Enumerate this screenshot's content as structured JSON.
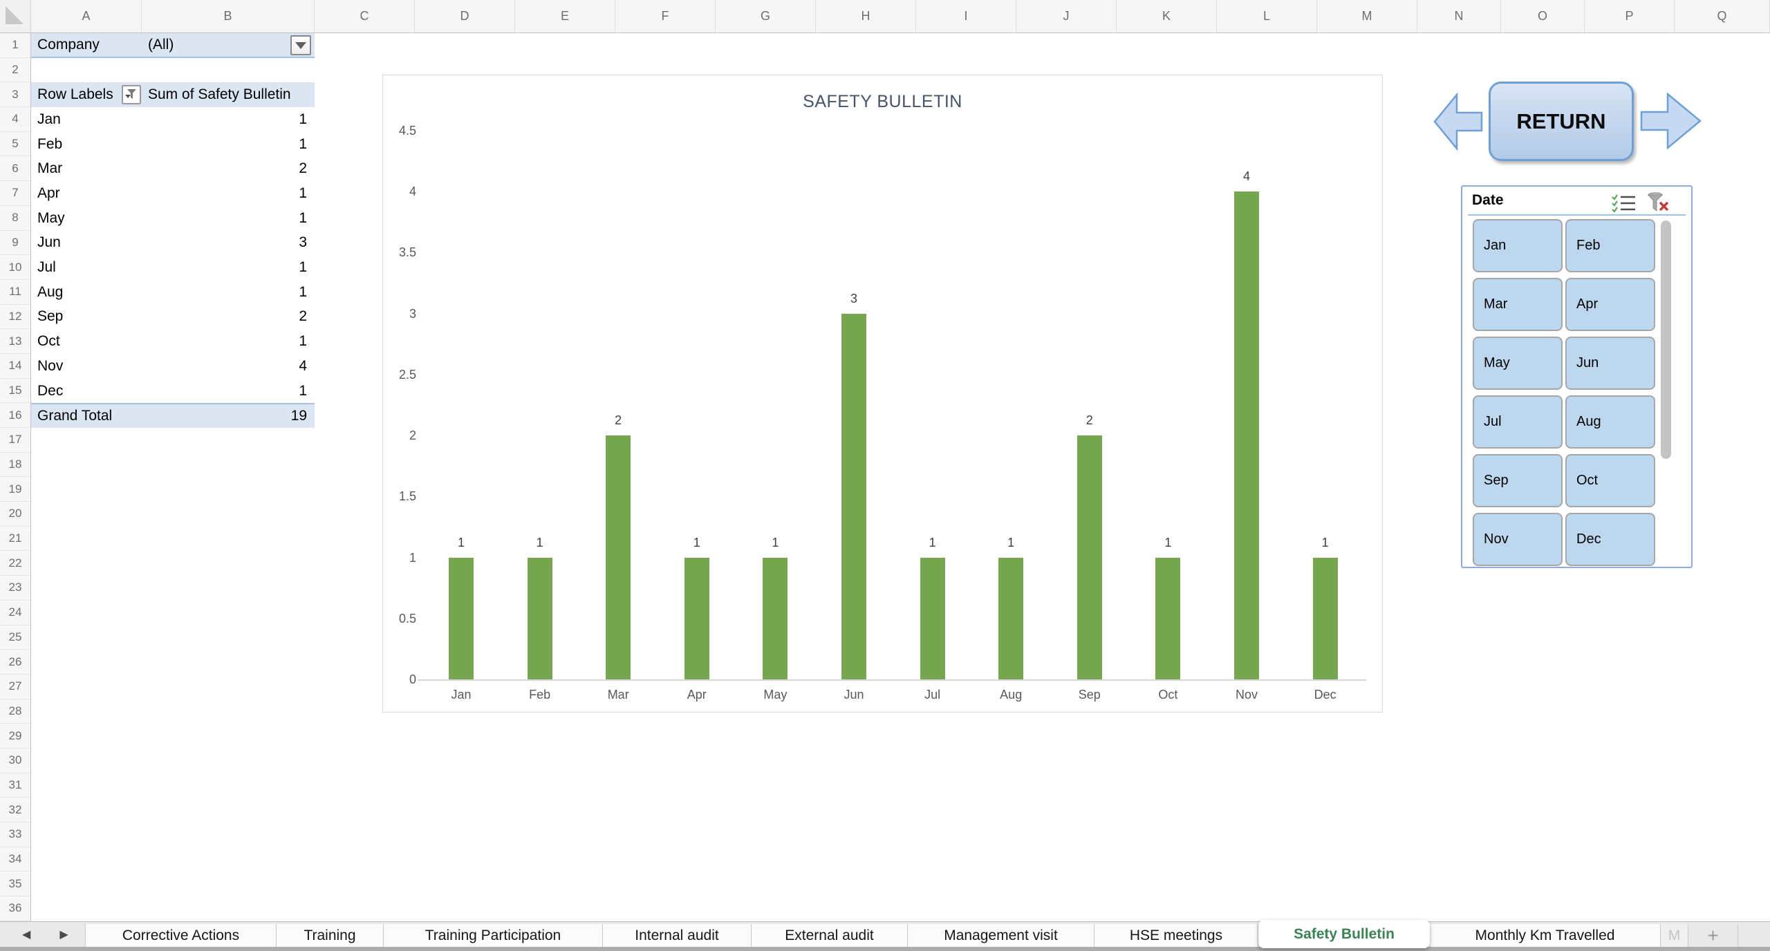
{
  "spreadsheet": {
    "column_headers": [
      "A",
      "B",
      "C",
      "D",
      "E",
      "F",
      "G",
      "H",
      "I",
      "J",
      "K",
      "L",
      "M",
      "N",
      "O",
      "P",
      "Q"
    ],
    "visible_rows": 36,
    "pivot_table": {
      "filter_field": "Company",
      "filter_value": "(All)",
      "row_labels_header": "Row Labels",
      "values_header": "Sum of Safety Bulletin",
      "rows": [
        {
          "label": "Jan",
          "value": 1
        },
        {
          "label": "Feb",
          "value": 1
        },
        {
          "label": "Mar",
          "value": 2
        },
        {
          "label": "Apr",
          "value": 1
        },
        {
          "label": "May",
          "value": 1
        },
        {
          "label": "Jun",
          "value": 3
        },
        {
          "label": "Jul",
          "value": 1
        },
        {
          "label": "Aug",
          "value": 1
        },
        {
          "label": "Sep",
          "value": 2
        },
        {
          "label": "Oct",
          "value": 1
        },
        {
          "label": "Nov",
          "value": 4
        },
        {
          "label": "Dec",
          "value": 1
        }
      ],
      "grand_total_label": "Grand Total",
      "grand_total_value": 19
    }
  },
  "chart_data": {
    "type": "bar",
    "title": "SAFETY BULLETIN",
    "categories": [
      "Jan",
      "Feb",
      "Mar",
      "Apr",
      "May",
      "Jun",
      "Jul",
      "Aug",
      "Sep",
      "Oct",
      "Nov",
      "Dec"
    ],
    "values": [
      1,
      1,
      2,
      1,
      1,
      3,
      1,
      1,
      2,
      1,
      4,
      1
    ],
    "xlabel": "",
    "ylabel": "",
    "ylim": [
      0,
      4.5
    ],
    "ytick_step": 0.5,
    "grid": false,
    "data_labels": true,
    "legend": "none",
    "bar_color": "#76A64F",
    "axis_label_color": "#595959",
    "title_color": "#44546A"
  },
  "return_nav": {
    "button_label": "RETURN"
  },
  "slicer": {
    "title": "Date",
    "items": [
      "Jan",
      "Feb",
      "Mar",
      "Apr",
      "May",
      "Jun",
      "Jul",
      "Aug",
      "Sep",
      "Oct",
      "Nov",
      "Dec"
    ],
    "button_color": "#BDD7EE"
  },
  "tab_bar": {
    "tabs": [
      "Corrective Actions",
      "Training",
      "Training Participation",
      "Internal audit",
      "External audit",
      "Management visit",
      "HSE meetings",
      "Safety Bulletin",
      "Monthly Km Travelled"
    ],
    "active_tab": "Safety Bulletin",
    "active_tab_color": "#3B8255",
    "overflow_tab": "M",
    "add_sheet_label": "+"
  }
}
